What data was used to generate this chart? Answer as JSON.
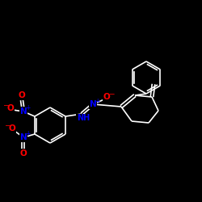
{
  "background_color": "#000000",
  "bond_color": "#ffffff",
  "atom_colors": {
    "N": "#0000ff",
    "O": "#ff0000",
    "C": "#ffffff",
    "H": "#ffffff"
  },
  "figsize": [
    2.5,
    2.5
  ],
  "dpi": 100,
  "lw": 1.2,
  "fs": 7.5
}
